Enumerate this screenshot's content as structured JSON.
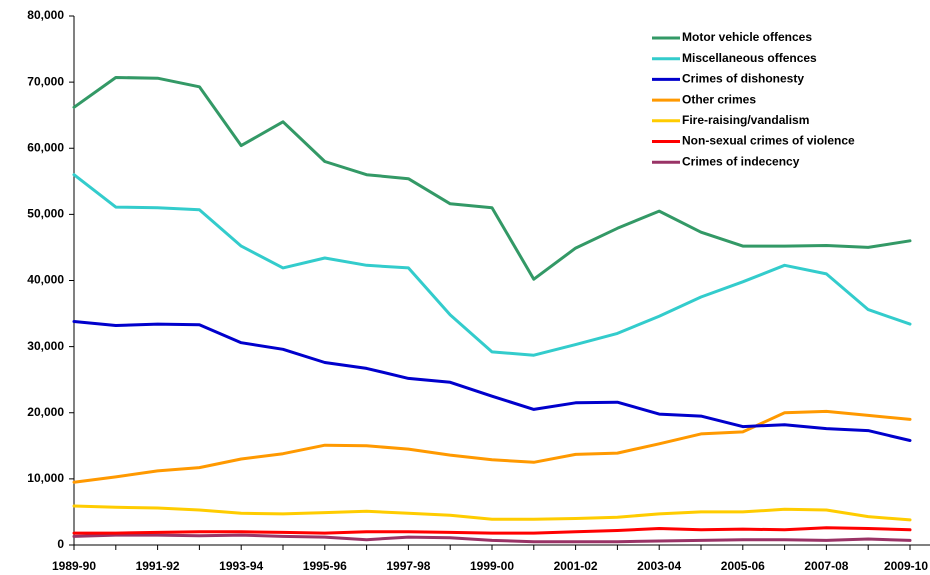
{
  "chart_data": {
    "type": "line",
    "categories": [
      "1989-90",
      null,
      "1991-92",
      null,
      "1993-94",
      null,
      "1995-96",
      null,
      "1997-98",
      null,
      "1999-00",
      null,
      "2001-02",
      null,
      "2003-04",
      null,
      "2005-06",
      null,
      "2007-08",
      null,
      "2009-10"
    ],
    "series": [
      {
        "name": "Motor vehicle offences",
        "color": "#339966",
        "values": [
          66200,
          70700,
          70600,
          69300,
          60400,
          64000,
          58000,
          56000,
          55400,
          51600,
          51000,
          40200,
          44900,
          47900,
          50500,
          47300,
          45200,
          45200,
          45300,
          45000,
          46000
        ]
      },
      {
        "name": "Miscellaneous offences",
        "color": "#33cccc",
        "values": [
          56000,
          51100,
          51000,
          50700,
          45200,
          41900,
          43400,
          42300,
          41900,
          34800,
          29200,
          28700,
          30300,
          32000,
          34600,
          37500,
          39800,
          42300,
          41000,
          35600,
          33400
        ]
      },
      {
        "name": "Crimes of dishonesty",
        "color": "#0000cc",
        "values": [
          33800,
          33200,
          33400,
          33300,
          30600,
          29600,
          27600,
          26700,
          25200,
          24600,
          22500,
          20500,
          21500,
          21600,
          19800,
          19500,
          17900,
          18200,
          17600,
          17300,
          15800
        ]
      },
      {
        "name": "Other crimes",
        "color": "#ff9900",
        "values": [
          9500,
          10300,
          11200,
          11700,
          13000,
          13800,
          15100,
          15000,
          14500,
          13600,
          12900,
          12500,
          13700,
          13900,
          15300,
          16800,
          17100,
          20000,
          20200,
          19600,
          19000
        ]
      },
      {
        "name": "Fire-raising/vandalism",
        "color": "#ffcc00",
        "values": [
          5900,
          5700,
          5600,
          5300,
          4800,
          4700,
          4900,
          5100,
          4800,
          4500,
          3900,
          3900,
          4000,
          4200,
          4700,
          5000,
          5000,
          5400,
          5300,
          4300,
          3800
        ]
      },
      {
        "name": "Non-sexual crimes of violence",
        "color": "#ff0000",
        "values": [
          1800,
          1800,
          1900,
          2000,
          2000,
          1900,
          1800,
          2000,
          2000,
          1900,
          1800,
          1800,
          2000,
          2200,
          2500,
          2300,
          2400,
          2300,
          2600,
          2500,
          2300
        ]
      },
      {
        "name": "Crimes of indecency",
        "color": "#993366",
        "values": [
          1300,
          1500,
          1500,
          1400,
          1500,
          1300,
          1200,
          800,
          1200,
          1100,
          700,
          500,
          500,
          500,
          600,
          700,
          800,
          800,
          700,
          900,
          700
        ]
      }
    ],
    "ylim": [
      0,
      80000
    ],
    "yticks": [
      0,
      {
        "value": 10000,
        "label": "10,000"
      },
      {
        "value": 20000,
        "label": "20,000"
      },
      {
        "value": 30000,
        "label": "30,000"
      },
      {
        "value": 40000,
        "label": "40,000"
      },
      {
        "value": 50000,
        "label": "50,000"
      },
      {
        "value": 60000,
        "label": "60,000"
      },
      {
        "value": 70000,
        "label": "70,000"
      },
      {
        "value": 80000,
        "label": "80,000"
      }
    ],
    "grid": false,
    "legend": "top-right"
  }
}
